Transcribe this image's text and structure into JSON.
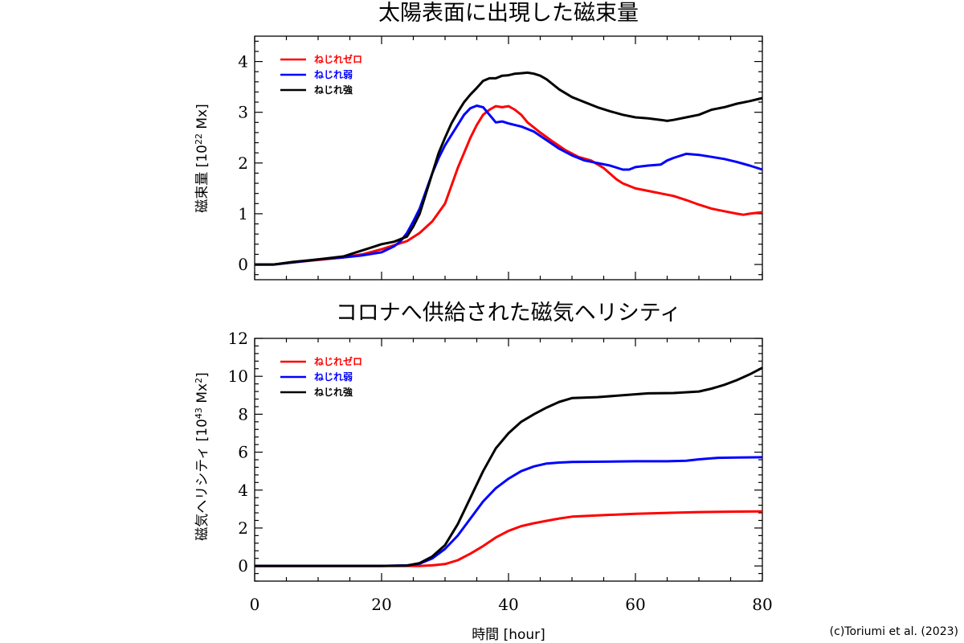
{
  "credit": "(c)Toriumi et al. (2023)",
  "colors": {
    "zero": "#ff0000",
    "weak": "#0000ff",
    "strong": "#000000"
  },
  "chart_data": [
    {
      "type": "line",
      "title": "太陽表面に出現した磁束量",
      "ylabel_main": "磁束量 [10",
      "ylabel_exp": "22",
      "ylabel_unit": " Mx]",
      "xlabel": "",
      "xlim": [
        0,
        80
      ],
      "ylim": [
        -0.3,
        4.5
      ],
      "yticks": [
        0,
        1,
        2,
        3,
        4
      ],
      "xticks": [
        0,
        20,
        40,
        60,
        80
      ],
      "show_xtick_labels": false,
      "grid": false,
      "legend_position": "top-left",
      "series": [
        {
          "name": "ねじれゼロ",
          "color": "#ff0000",
          "points": [
            [
              0,
              0
            ],
            [
              3,
              0
            ],
            [
              6,
              0.04
            ],
            [
              10,
              0.09
            ],
            [
              14,
              0.14
            ],
            [
              17,
              0.2
            ],
            [
              20,
              0.3
            ],
            [
              22,
              0.38
            ],
            [
              24,
              0.46
            ],
            [
              26,
              0.62
            ],
            [
              28,
              0.85
            ],
            [
              30,
              1.2
            ],
            [
              31,
              1.55
            ],
            [
              32,
              1.9
            ],
            [
              33,
              2.2
            ],
            [
              34,
              2.5
            ],
            [
              35,
              2.75
            ],
            [
              36,
              2.95
            ],
            [
              37,
              3.05
            ],
            [
              38,
              3.12
            ],
            [
              39,
              3.1
            ],
            [
              40,
              3.12
            ],
            [
              41,
              3.05
            ],
            [
              42,
              2.95
            ],
            [
              43,
              2.8
            ],
            [
              45,
              2.6
            ],
            [
              47,
              2.42
            ],
            [
              49,
              2.25
            ],
            [
              51,
              2.12
            ],
            [
              53,
              2.05
            ],
            [
              55,
              1.9
            ],
            [
              57,
              1.68
            ],
            [
              58,
              1.6
            ],
            [
              60,
              1.5
            ],
            [
              62,
              1.45
            ],
            [
              64,
              1.4
            ],
            [
              66,
              1.35
            ],
            [
              68,
              1.27
            ],
            [
              70,
              1.18
            ],
            [
              72,
              1.1
            ],
            [
              74,
              1.05
            ],
            [
              76,
              1.0
            ],
            [
              77,
              0.98
            ],
            [
              78,
              1.0
            ],
            [
              80,
              1.03
            ]
          ]
        },
        {
          "name": "ねじれ弱",
          "color": "#0000ff",
          "points": [
            [
              0,
              0
            ],
            [
              3,
              0
            ],
            [
              6,
              0.04
            ],
            [
              10,
              0.1
            ],
            [
              14,
              0.14
            ],
            [
              17,
              0.18
            ],
            [
              20,
              0.24
            ],
            [
              21,
              0.3
            ],
            [
              22,
              0.36
            ],
            [
              23,
              0.46
            ],
            [
              24,
              0.62
            ],
            [
              25,
              0.85
            ],
            [
              26,
              1.1
            ],
            [
              27,
              1.45
            ],
            [
              28,
              1.8
            ],
            [
              29,
              2.1
            ],
            [
              30,
              2.35
            ],
            [
              31,
              2.55
            ],
            [
              32,
              2.75
            ],
            [
              33,
              2.95
            ],
            [
              34,
              3.08
            ],
            [
              35,
              3.13
            ],
            [
              36,
              3.1
            ],
            [
              37,
              2.95
            ],
            [
              38,
              2.8
            ],
            [
              39,
              2.82
            ],
            [
              40,
              2.78
            ],
            [
              42,
              2.72
            ],
            [
              44,
              2.62
            ],
            [
              46,
              2.45
            ],
            [
              48,
              2.28
            ],
            [
              50,
              2.15
            ],
            [
              52,
              2.05
            ],
            [
              54,
              2.0
            ],
            [
              56,
              1.95
            ],
            [
              58,
              1.87
            ],
            [
              59,
              1.87
            ],
            [
              60,
              1.92
            ],
            [
              62,
              1.95
            ],
            [
              64,
              1.97
            ],
            [
              65,
              2.05
            ],
            [
              66,
              2.1
            ],
            [
              68,
              2.18
            ],
            [
              70,
              2.16
            ],
            [
              72,
              2.12
            ],
            [
              74,
              2.08
            ],
            [
              76,
              2.02
            ],
            [
              78,
              1.95
            ],
            [
              80,
              1.87
            ]
          ]
        },
        {
          "name": "ねじれ強",
          "color": "#000000",
          "points": [
            [
              0,
              0
            ],
            [
              3,
              0
            ],
            [
              6,
              0.05
            ],
            [
              10,
              0.1
            ],
            [
              14,
              0.16
            ],
            [
              16,
              0.24
            ],
            [
              18,
              0.32
            ],
            [
              20,
              0.4
            ],
            [
              22,
              0.45
            ],
            [
              24,
              0.55
            ],
            [
              25,
              0.75
            ],
            [
              26,
              1.0
            ],
            [
              27,
              1.4
            ],
            [
              28,
              1.8
            ],
            [
              29,
              2.2
            ],
            [
              30,
              2.5
            ],
            [
              31,
              2.78
            ],
            [
              32,
              3.0
            ],
            [
              33,
              3.2
            ],
            [
              34,
              3.35
            ],
            [
              35,
              3.48
            ],
            [
              36,
              3.62
            ],
            [
              37,
              3.67
            ],
            [
              38,
              3.67
            ],
            [
              39,
              3.72
            ],
            [
              40,
              3.73
            ],
            [
              41,
              3.76
            ],
            [
              42,
              3.77
            ],
            [
              43,
              3.78
            ],
            [
              44,
              3.76
            ],
            [
              45,
              3.72
            ],
            [
              46,
              3.65
            ],
            [
              47,
              3.55
            ],
            [
              48,
              3.45
            ],
            [
              50,
              3.3
            ],
            [
              52,
              3.2
            ],
            [
              54,
              3.1
            ],
            [
              56,
              3.02
            ],
            [
              58,
              2.95
            ],
            [
              60,
              2.9
            ],
            [
              62,
              2.88
            ],
            [
              64,
              2.85
            ],
            [
              65,
              2.83
            ],
            [
              66,
              2.85
            ],
            [
              68,
              2.9
            ],
            [
              70,
              2.95
            ],
            [
              72,
              3.05
            ],
            [
              74,
              3.1
            ],
            [
              76,
              3.17
            ],
            [
              78,
              3.22
            ],
            [
              80,
              3.28
            ]
          ]
        }
      ]
    },
    {
      "type": "line",
      "title": "コロナへ供給された磁気ヘリシティ",
      "ylabel_main": "磁気ヘリシティ [10",
      "ylabel_exp": "43",
      "ylabel_unit": " Mx",
      "ylabel_exp2": "2",
      "ylabel_end": "]",
      "xlabel": "時間 [hour]",
      "xlim": [
        0,
        80
      ],
      "ylim": [
        -0.8,
        12
      ],
      "yticks": [
        0,
        2,
        4,
        6,
        8,
        10,
        12
      ],
      "xticks": [
        0,
        20,
        40,
        60,
        80
      ],
      "show_xtick_labels": true,
      "grid": false,
      "legend_position": "top-left",
      "series": [
        {
          "name": "ねじれゼロ",
          "color": "#ff0000",
          "points": [
            [
              0,
              0
            ],
            [
              20,
              0
            ],
            [
              26,
              0
            ],
            [
              28,
              0.03
            ],
            [
              30,
              0.1
            ],
            [
              32,
              0.3
            ],
            [
              34,
              0.65
            ],
            [
              36,
              1.05
            ],
            [
              38,
              1.5
            ],
            [
              40,
              1.85
            ],
            [
              42,
              2.1
            ],
            [
              44,
              2.25
            ],
            [
              46,
              2.38
            ],
            [
              48,
              2.5
            ],
            [
              50,
              2.6
            ],
            [
              55,
              2.68
            ],
            [
              60,
              2.75
            ],
            [
              65,
              2.8
            ],
            [
              70,
              2.84
            ],
            [
              75,
              2.86
            ],
            [
              80,
              2.88
            ]
          ]
        },
        {
          "name": "ねじれ弱",
          "color": "#0000ff",
          "points": [
            [
              0,
              0
            ],
            [
              20,
              0
            ],
            [
              24,
              0.03
            ],
            [
              26,
              0.12
            ],
            [
              28,
              0.4
            ],
            [
              30,
              0.9
            ],
            [
              32,
              1.6
            ],
            [
              34,
              2.5
            ],
            [
              36,
              3.4
            ],
            [
              38,
              4.1
            ],
            [
              40,
              4.6
            ],
            [
              42,
              5.0
            ],
            [
              44,
              5.25
            ],
            [
              46,
              5.4
            ],
            [
              48,
              5.45
            ],
            [
              50,
              5.48
            ],
            [
              55,
              5.5
            ],
            [
              60,
              5.52
            ],
            [
              65,
              5.52
            ],
            [
              68,
              5.55
            ],
            [
              70,
              5.62
            ],
            [
              73,
              5.7
            ],
            [
              76,
              5.72
            ],
            [
              80,
              5.73
            ]
          ]
        },
        {
          "name": "ねじれ強",
          "color": "#000000",
          "points": [
            [
              0,
              0
            ],
            [
              20,
              0
            ],
            [
              24,
              0.02
            ],
            [
              26,
              0.15
            ],
            [
              28,
              0.5
            ],
            [
              30,
              1.1
            ],
            [
              32,
              2.2
            ],
            [
              34,
              3.6
            ],
            [
              36,
              5.0
            ],
            [
              38,
              6.2
            ],
            [
              40,
              7.0
            ],
            [
              42,
              7.6
            ],
            [
              44,
              8.0
            ],
            [
              46,
              8.35
            ],
            [
              48,
              8.65
            ],
            [
              50,
              8.85
            ],
            [
              54,
              8.9
            ],
            [
              58,
              9.0
            ],
            [
              62,
              9.1
            ],
            [
              66,
              9.12
            ],
            [
              70,
              9.2
            ],
            [
              72,
              9.35
            ],
            [
              74,
              9.55
            ],
            [
              76,
              9.8
            ],
            [
              78,
              10.1
            ],
            [
              80,
              10.45
            ]
          ]
        }
      ]
    }
  ]
}
